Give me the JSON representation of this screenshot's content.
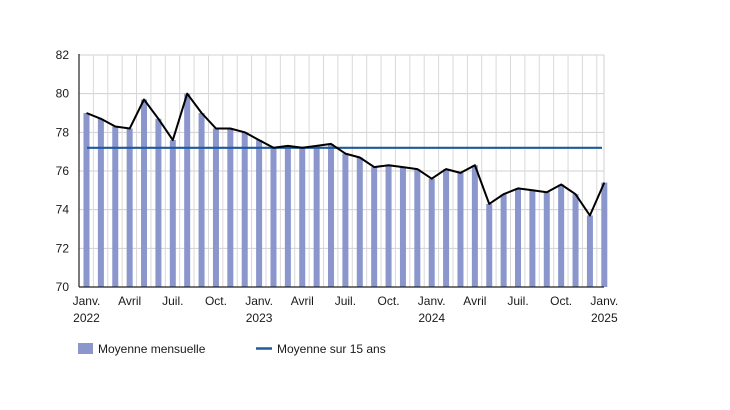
{
  "chart_data": {
    "type": "bar",
    "ylim": [
      70,
      82
    ],
    "yticks": [
      "70",
      "72",
      "74",
      "76",
      "78",
      "80",
      "82"
    ],
    "grid": true,
    "xtick_labels": [
      {
        "index": 0,
        "line1": "Janv.",
        "line2": "2022"
      },
      {
        "index": 3,
        "line1": "Avril",
        "line2": ""
      },
      {
        "index": 6,
        "line1": "Juil.",
        "line2": ""
      },
      {
        "index": 9,
        "line1": "Oct.",
        "line2": ""
      },
      {
        "index": 12,
        "line1": "Janv.",
        "line2": "2023"
      },
      {
        "index": 15,
        "line1": "Avril",
        "line2": ""
      },
      {
        "index": 18,
        "line1": "Juil.",
        "line2": ""
      },
      {
        "index": 21,
        "line1": "Oct.",
        "line2": ""
      },
      {
        "index": 24,
        "line1": "Janv.",
        "line2": "2024"
      },
      {
        "index": 27,
        "line1": "Avril",
        "line2": ""
      },
      {
        "index": 30,
        "line1": "Juil.",
        "line2": ""
      },
      {
        "index": 33,
        "line1": "Oct.",
        "line2": ""
      },
      {
        "index": 36,
        "line1": "Janv.",
        "line2": "2025"
      }
    ],
    "series": [
      {
        "name": "Moyenne mensuelle",
        "kind": "bar+line",
        "color": "#8a96cc",
        "line_color": "#000000",
        "values": [
          79.0,
          78.7,
          78.3,
          78.2,
          79.7,
          78.7,
          77.6,
          80.0,
          79.0,
          78.2,
          78.2,
          78.0,
          77.6,
          77.2,
          77.3,
          77.2,
          77.3,
          77.4,
          76.9,
          76.7,
          76.2,
          76.3,
          76.2,
          76.1,
          75.6,
          76.1,
          75.9,
          76.3,
          74.3,
          74.8,
          75.1,
          75.0,
          74.9,
          75.3,
          74.8,
          73.7,
          75.4
        ]
      },
      {
        "name": "Moyenne sur 15 ans",
        "kind": "hline",
        "color": "#1f5a9c",
        "value": 77.2
      }
    ]
  }
}
